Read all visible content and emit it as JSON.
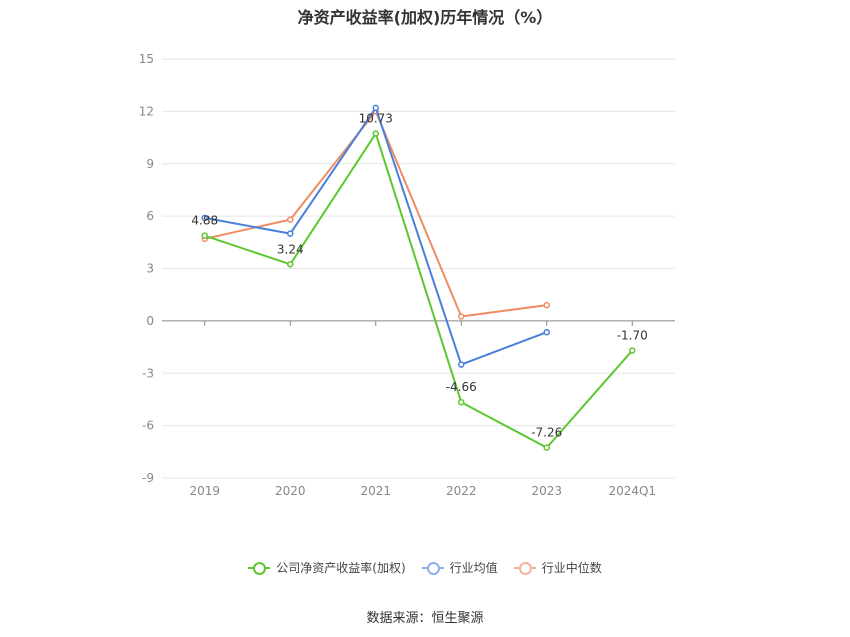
{
  "chart_data": {
    "type": "line",
    "title": "净资产收益率(加权)历年情况（%）",
    "categories": [
      "2019",
      "2020",
      "2021",
      "2022",
      "2023",
      "2024Q1"
    ],
    "yticks": [
      15,
      12,
      9,
      6,
      3,
      0,
      -3,
      -6,
      -9
    ],
    "ylim": [
      -9,
      15
    ],
    "grid": true,
    "legend_position": "bottom",
    "series": [
      {
        "name": "公司净资产收益率(加权)",
        "color": "#5cc72f",
        "values": [
          4.88,
          3.24,
          10.73,
          -4.66,
          -7.26,
          -1.7
        ],
        "labels": [
          "4.88",
          "3.24",
          "10.73",
          "-4.66",
          "-7.26",
          "-1.70"
        ]
      },
      {
        "name": "行业均值",
        "color": "#4a7fdb",
        "values": [
          5.9,
          5.0,
          12.2,
          -2.5,
          -0.65,
          null
        ]
      },
      {
        "name": "行业中位数",
        "color": "#ef8c62",
        "values": [
          4.7,
          5.8,
          12.0,
          0.25,
          0.9,
          null
        ]
      }
    ]
  },
  "source": "数据来源：恒生聚源"
}
